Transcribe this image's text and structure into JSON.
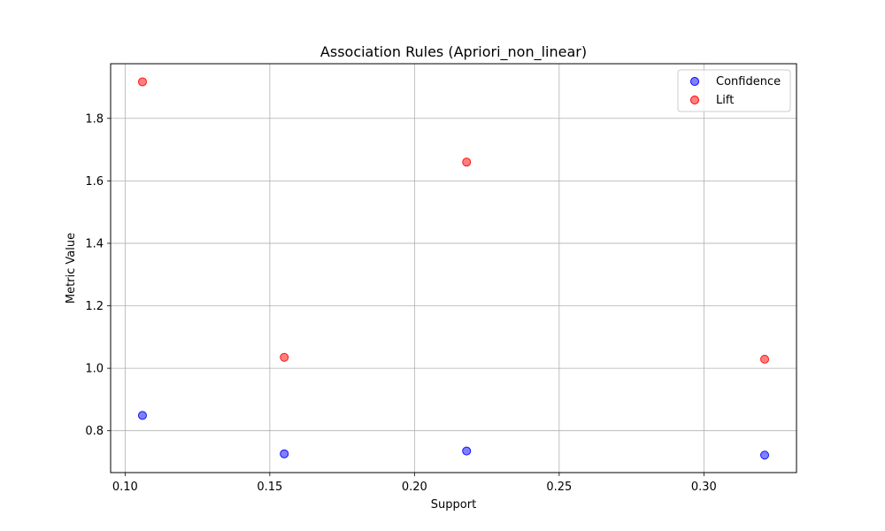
{
  "chart_data": {
    "type": "scatter",
    "title": "Association Rules (Apriori_non_linear)",
    "xlabel": "Support",
    "ylabel": "Metric Value",
    "xlim": [
      0.095,
      0.332
    ],
    "ylim": [
      0.666,
      1.975
    ],
    "xticks": [
      0.1,
      0.15,
      0.2,
      0.25,
      0.3
    ],
    "xtick_labels": [
      "0.10",
      "0.15",
      "0.20",
      "0.25",
      "0.30"
    ],
    "yticks": [
      0.8,
      1.0,
      1.2,
      1.4,
      1.6,
      1.8
    ],
    "ytick_labels": [
      "0.8",
      "1.0",
      "1.2",
      "1.4",
      "1.6",
      "1.8"
    ],
    "grid": true,
    "legend_position": "top-right",
    "series": [
      {
        "name": "Confidence",
        "color": "#0000ff",
        "x": [
          0.106,
          0.155,
          0.218,
          0.321
        ],
        "y": [
          0.849,
          0.726,
          0.735,
          0.722
        ]
      },
      {
        "name": "Lift",
        "color": "#ff0000",
        "x": [
          0.106,
          0.155,
          0.218,
          0.321
        ],
        "y": [
          1.917,
          1.035,
          1.66,
          1.029
        ]
      }
    ]
  }
}
